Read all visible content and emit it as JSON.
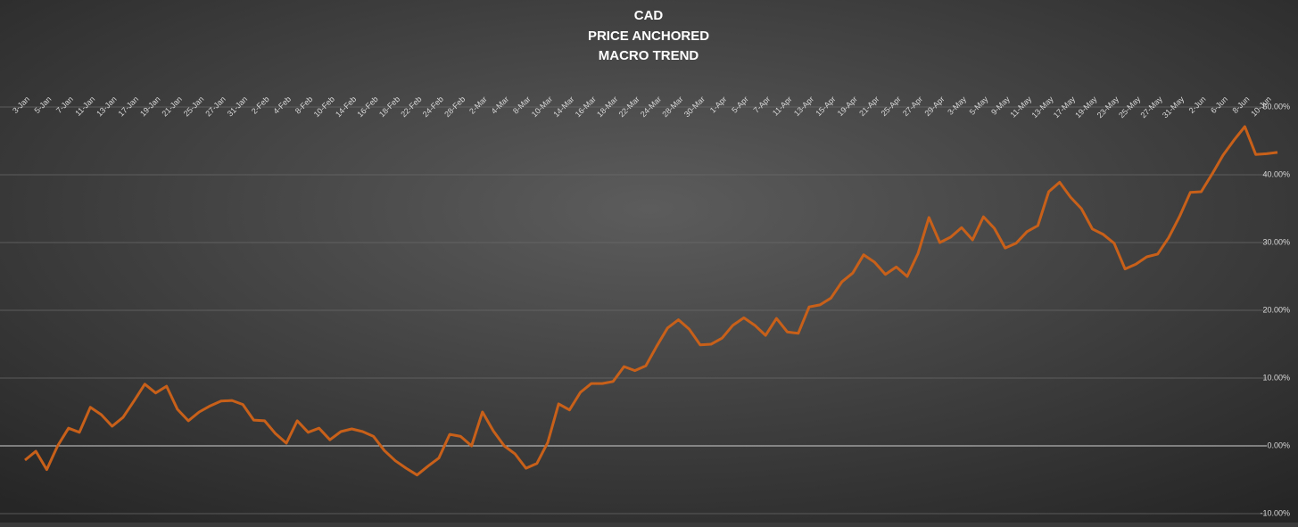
{
  "chart_data": {
    "type": "line",
    "title": [
      "CAD",
      "PRICE ANCHORED",
      "MACRO TREND"
    ],
    "categories": [
      "3-Jan",
      null,
      "5-Jan",
      null,
      "7-Jan",
      null,
      "11-Jan",
      null,
      "13-Jan",
      null,
      "17-Jan",
      null,
      "19-Jan",
      null,
      "21-Jan",
      null,
      "25-Jan",
      null,
      "27-Jan",
      null,
      "31-Jan",
      null,
      "2-Feb",
      null,
      "4-Feb",
      null,
      "8-Feb",
      null,
      "10-Feb",
      null,
      "14-Feb",
      null,
      "16-Feb",
      null,
      "18-Feb",
      null,
      "22-Feb",
      null,
      "24-Feb",
      null,
      "28-Feb",
      null,
      "2-Mar",
      null,
      "4-Mar",
      null,
      "8-Mar",
      null,
      "10-Mar",
      null,
      "14-Mar",
      null,
      "16-Mar",
      null,
      "18-Mar",
      null,
      "22-Mar",
      null,
      "24-Mar",
      null,
      "28-Mar",
      null,
      "30-Mar",
      null,
      "1-Apr",
      null,
      "5-Apr",
      null,
      "7-Apr",
      null,
      "11-Apr",
      null,
      "13-Apr",
      null,
      "15-Apr",
      null,
      "19-Apr",
      null,
      "21-Apr",
      null,
      "25-Apr",
      null,
      "27-Apr",
      null,
      "29-Apr",
      null,
      "3-May",
      null,
      "5-May",
      null,
      "9-May",
      null,
      "11-May",
      null,
      "13-May",
      null,
      "17-May",
      null,
      "19-May",
      null,
      "23-May",
      null,
      "25-May",
      null,
      "27-May",
      null,
      "31-May",
      null,
      "2-Jun",
      null,
      "6-Jun",
      null,
      "8-Jun",
      null,
      "10-Jun",
      null
    ],
    "series": [
      {
        "color": "#c8601a",
        "values": [
          -2.1,
          -0.8,
          -3.5,
          0,
          2.6,
          2.0,
          5.7,
          4.6,
          2.9,
          4.2,
          6.6,
          9.1,
          7.8,
          8.8,
          5.4,
          3.7,
          5.0,
          5.9,
          6.6,
          6.7,
          6.1,
          3.8,
          3.7,
          1.8,
          0.4,
          3.7,
          2.0,
          2.6,
          0.9,
          2.1,
          2.5,
          2.1,
          1.4,
          -0.7,
          -2.2,
          -3.3,
          -4.3,
          -3.0,
          -1.8,
          1.7,
          1.4,
          0,
          5.0,
          2.2,
          0,
          -1.2,
          -3.3,
          -2.6,
          0.5,
          6.2,
          5.3,
          7.9,
          9.2,
          9.2,
          9.5,
          11.7,
          11.1,
          11.8,
          14.7,
          17.4,
          18.6,
          17.2,
          14.9,
          15.0,
          15.9,
          17.8,
          18.9,
          17.8,
          16.3,
          18.8,
          16.8,
          16.6,
          20.5,
          20.8,
          21.8,
          24.2,
          25.5,
          28.2,
          27.1,
          25.3,
          26.4,
          25.0,
          28.4,
          33.7,
          30.0,
          30.8,
          32.2,
          30.4,
          33.8,
          32.1,
          29.2,
          29.9,
          31.6,
          32.5,
          37.5,
          38.9,
          36.7,
          35.0,
          32.0,
          31.2,
          29.9,
          26.1,
          26.8,
          27.9,
          28.3,
          30.7,
          33.8,
          37.4,
          37.5,
          40.1,
          42.9,
          45.1,
          47.1,
          43.0,
          43.1,
          43.3
        ]
      }
    ],
    "ylim": [
      -10,
      50
    ],
    "yticks": [
      {
        "value": -10,
        "label": "-10.00%"
      },
      {
        "value": 0,
        "label": "0.00%"
      },
      {
        "value": 10,
        "label": "10.00%"
      },
      {
        "value": 20,
        "label": "20.00%"
      },
      {
        "value": 30,
        "label": "30.00%"
      },
      {
        "value": 40,
        "label": "40.00%"
      },
      {
        "value": 50,
        "label": "50.00%"
      }
    ],
    "grid": true
  }
}
